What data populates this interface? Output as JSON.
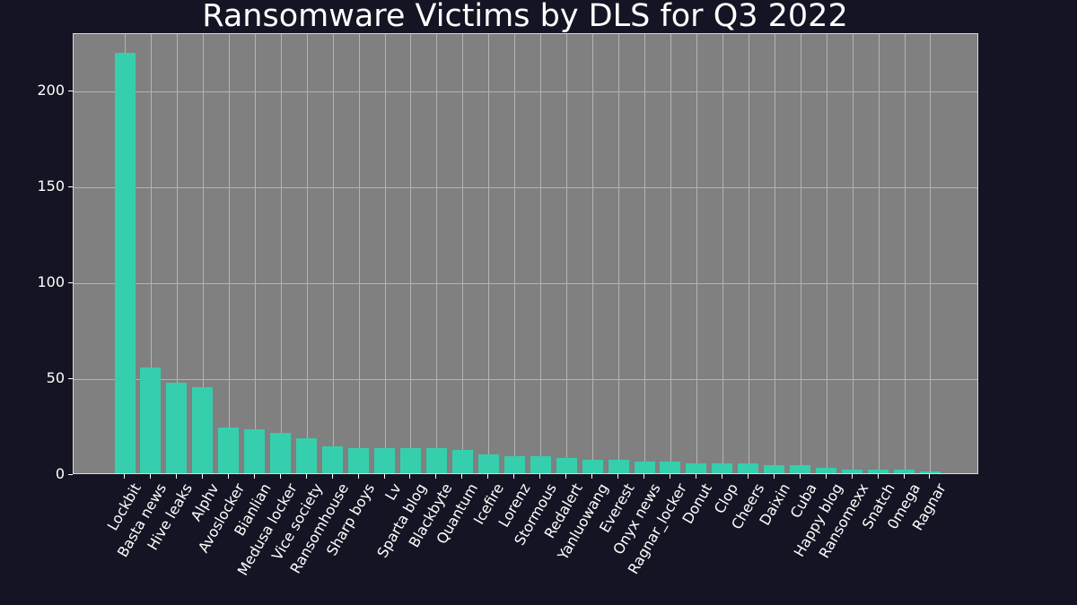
{
  "chart_data": {
    "type": "bar",
    "title": "Ransomware Victims by DLS for Q3 2022",
    "xlabel": "",
    "ylabel": "",
    "ylim": [
      0,
      230
    ],
    "yticks": [
      0,
      50,
      100,
      150,
      200
    ],
    "grid": true,
    "legend": null,
    "bar_color": "#36cfad",
    "plot_background": "#808080",
    "figure_background": "#141424",
    "categories": [
      "Lockbit",
      "Basta news",
      "Hive leaks",
      "Alphv",
      "Avoslocker",
      "Bianlian",
      "Medusa locker",
      "Vice society",
      "Ransomhouse",
      "Sharp boys",
      "Lv",
      "Sparta blog",
      "Blackbyte",
      "Quantum",
      "Icefire",
      "Lorenz",
      "Stormous",
      "Redalert",
      "Yanluowang",
      "Everest",
      "Onyx news",
      "Ragnar_locker",
      "Donut",
      "Clop",
      "Cheers",
      "Daixin",
      "Cuba",
      "Happy blog",
      "Ransomexx",
      "Snatch",
      "0mega",
      "Ragnar"
    ],
    "values": [
      219,
      55,
      47,
      45,
      24,
      23,
      21,
      18,
      14,
      13,
      13,
      13,
      13,
      12,
      10,
      9,
      9,
      8,
      7,
      7,
      6,
      6,
      5,
      5,
      5,
      4,
      4,
      3,
      2,
      2,
      2,
      1
    ]
  }
}
